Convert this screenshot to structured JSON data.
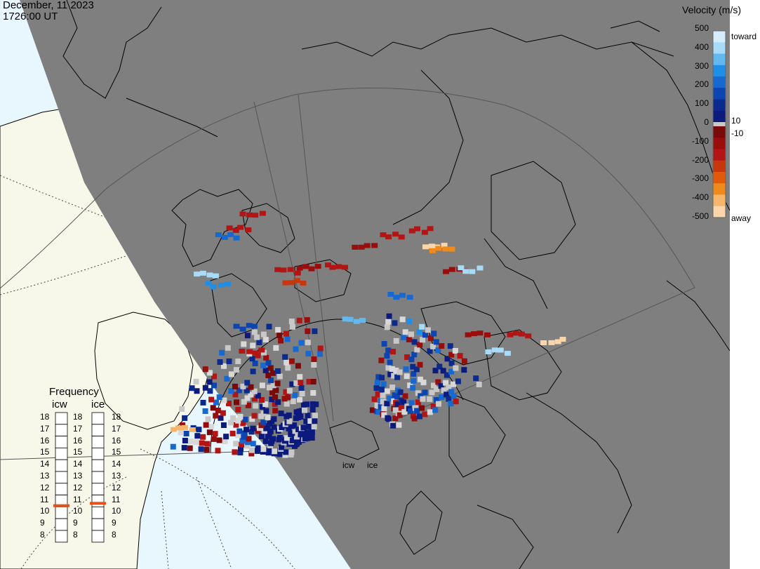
{
  "header": {
    "date": "December, 11 2023",
    "time": "1726:00 UT"
  },
  "colorbar": {
    "title": "Velocity (m/s)",
    "ticks": [
      "500",
      "400",
      "300",
      "200",
      "100",
      "0",
      "-100",
      "-200",
      "-300",
      "-400",
      "-500"
    ],
    "right_labels": {
      "toward": "toward",
      "pos": "10",
      "neg": "-10",
      "away": "away"
    },
    "colors": {
      "toward": [
        "#d5ecfb",
        "#a7dbf8",
        "#63b8f0",
        "#1f8ee6",
        "#1769d2",
        "#0d45b0",
        "#0a2a8e",
        "#0b1a7c"
      ],
      "away": [
        "#7a0a0a",
        "#9a0d0d",
        "#b31414",
        "#c8360c",
        "#e05a0a",
        "#f08a1c",
        "#f7b56c",
        "#fbd6aa"
      ],
      "zero": "#c8c8c8"
    }
  },
  "frequency": {
    "title": "Frequency",
    "cols": [
      "icw",
      "ice"
    ],
    "levels": [
      "18",
      "17",
      "16",
      "15",
      "14",
      "13",
      "12",
      "11",
      "10",
      "9",
      "8"
    ],
    "selected": [
      10.6,
      10.8
    ],
    "marker_color": "#e8501a"
  },
  "radars": [
    "icw",
    "ice"
  ],
  "map_colors": {
    "night": "#7f7f7f",
    "day_land": "#f8f8ea",
    "day_ocean": "#e8f6fe",
    "coast": "#000000",
    "grid": "#555555"
  }
}
